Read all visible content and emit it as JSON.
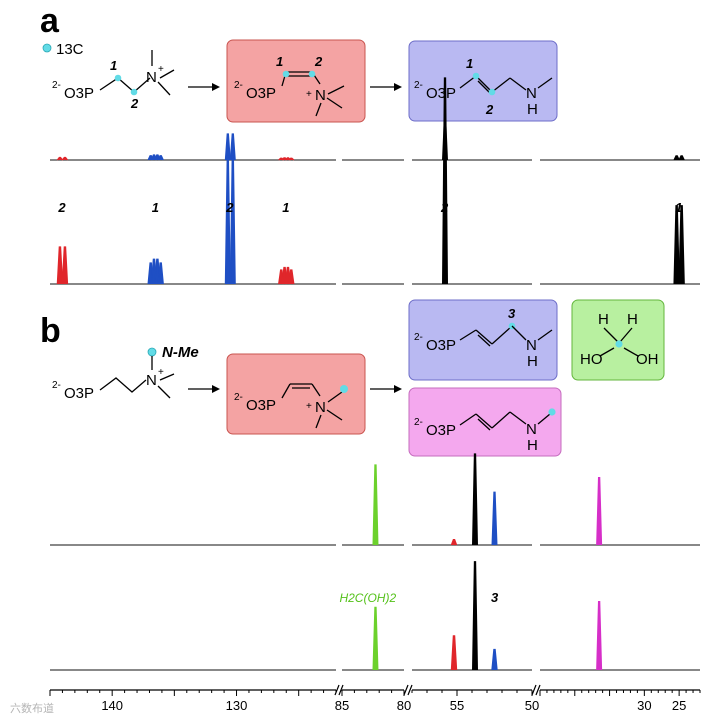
{
  "panels": {
    "a": {
      "label": "a",
      "legend_text": "13C",
      "reactant": {
        "charge": "2-",
        "group": "O3P",
        "cation": "N",
        "plus": "+"
      },
      "intermediate": {
        "charge": "2-",
        "group": "O3P",
        "cation": "N",
        "plus": "+"
      },
      "product": {
        "charge": "2-",
        "group": "O3P",
        "amine_n": "N",
        "amine_h": "H"
      },
      "position_labels": {
        "one": "1",
        "two": "2"
      }
    },
    "b": {
      "label": "b",
      "legend_text": "N-Me",
      "reactant": {
        "charge": "2-",
        "group": "O3P",
        "cation": "N",
        "plus": "+"
      },
      "intermediate": {
        "charge": "2-",
        "group": "O3P",
        "cation": "N",
        "plus": "+"
      },
      "product_top": {
        "charge": "2-",
        "group": "O3P",
        "amine_n": "N",
        "amine_h": "H",
        "position": "3"
      },
      "product_bottom": {
        "charge": "2-",
        "group": "O3P",
        "amine_n": "N",
        "amine_h": "H"
      },
      "formaldehyde_hydrate": {
        "h1": "H",
        "h2": "H",
        "oh_left": "HO",
        "oh_right": "OH"
      }
    }
  },
  "colors": {
    "red": "#e0262b",
    "blue": "#1f4fc4",
    "black": "#000000",
    "green": "#6cd12c",
    "magenta": "#d62fc8",
    "box_red": "#f4a3a3",
    "box_blue": "#b9b9f2",
    "box_magenta": "#f4a8ee",
    "box_green": "#b8f0a0",
    "atom_cyan": "#62dbe6"
  },
  "chart_data": {
    "type": "line",
    "title": "",
    "xlabel": "",
    "ylabel": "",
    "x_axis_segments": [
      {
        "range": [
          145,
          122
        ],
        "ticks": [
          140,
          130
        ]
      },
      {
        "range": [
          85,
          80
        ],
        "ticks": [
          85,
          80
        ]
      },
      {
        "range": [
          58,
          50
        ],
        "ticks": [
          55,
          50
        ]
      },
      {
        "range": [
          45,
          22
        ],
        "ticks": [
          30,
          25
        ]
      }
    ],
    "x_axis_tick_labels": [
      "140",
      "130",
      "85",
      "80",
      "55",
      "50",
      "30",
      "25"
    ],
    "spectra": [
      {
        "trace": "a-top",
        "peaks": [
          {
            "ppm": 144.0,
            "shape": "doublet",
            "rel_height": 0.06,
            "color": "red"
          },
          {
            "ppm": 136.5,
            "shape": "quartet",
            "rel_height": 0.12,
            "color": "blue"
          },
          {
            "ppm": 130.5,
            "shape": "doublet",
            "rel_height": 0.62,
            "color": "blue"
          },
          {
            "ppm": 126.0,
            "shape": "quartet",
            "rel_height": 0.05,
            "color": "red"
          },
          {
            "ppm": 55.8,
            "shape": "singlet",
            "rel_height": 1.0,
            "color": "black"
          },
          {
            "ppm": 25.0,
            "shape": "doublet",
            "rel_height": 0.1,
            "color": "black"
          }
        ]
      },
      {
        "trace": "a-bottom",
        "position_labels": [
          "2",
          "1",
          "2",
          "1",
          "2",
          "1"
        ],
        "peaks": [
          {
            "ppm": 144.0,
            "shape": "doublet",
            "rel_height": 0.18,
            "color": "red"
          },
          {
            "ppm": 136.5,
            "shape": "quartet",
            "rel_height": 0.12,
            "color": "blue"
          },
          {
            "ppm": 130.5,
            "shape": "doublet",
            "rel_height": 0.62,
            "color": "blue"
          },
          {
            "ppm": 126.0,
            "shape": "quartet",
            "rel_height": 0.08,
            "color": "red"
          },
          {
            "ppm": 55.8,
            "shape": "singlet",
            "rel_height": 1.0,
            "color": "black"
          },
          {
            "ppm": 25.0,
            "shape": "doublet",
            "rel_height": 0.38,
            "color": "black"
          }
        ]
      },
      {
        "trace": "b-top",
        "peaks": [
          {
            "ppm": 82.3,
            "shape": "singlet",
            "rel_height": 0.88,
            "color": "green"
          },
          {
            "ppm": 55.2,
            "shape": "singlet",
            "rel_height": 0.06,
            "color": "red"
          },
          {
            "ppm": 53.8,
            "shape": "singlet",
            "rel_height": 1.0,
            "color": "black"
          },
          {
            "ppm": 52.5,
            "shape": "singlet",
            "rel_height": 0.58,
            "color": "blue"
          },
          {
            "ppm": 36.5,
            "shape": "singlet",
            "rel_height": 0.74,
            "color": "magenta"
          }
        ]
      },
      {
        "trace": "b-bottom",
        "annotations": [
          "H2C(OH)2",
          "3"
        ],
        "peaks": [
          {
            "ppm": 82.3,
            "shape": "singlet",
            "rel_height": 0.55,
            "color": "green"
          },
          {
            "ppm": 55.2,
            "shape": "singlet",
            "rel_height": 0.3,
            "color": "red"
          },
          {
            "ppm": 53.8,
            "shape": "singlet",
            "rel_height": 0.95,
            "color": "black"
          },
          {
            "ppm": 52.5,
            "shape": "singlet",
            "rel_height": 0.18,
            "color": "blue"
          },
          {
            "ppm": 36.5,
            "shape": "singlet",
            "rel_height": 0.6,
            "color": "magenta"
          }
        ]
      }
    ]
  },
  "watermark": "六数布道"
}
